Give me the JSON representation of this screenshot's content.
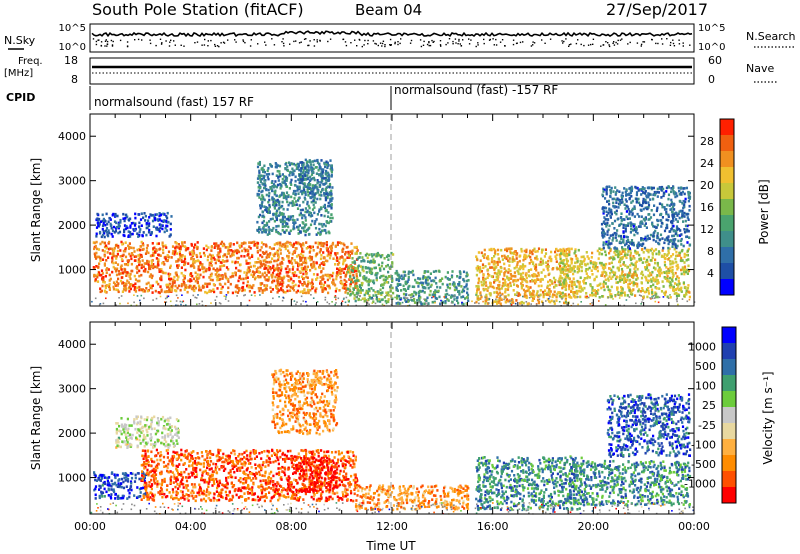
{
  "header": {
    "station": "South Pole Station (fitACF)",
    "beam": "Beam 04",
    "date": "27/Sep/2017"
  },
  "top_strip": {
    "nsky_label": "N.Sky",
    "nsearch_label": "N.Search",
    "nsky_ticks": [
      "10^5",
      "10^0"
    ],
    "nsearch_ticks": [
      "10^5",
      "10^0"
    ],
    "freq_label": "Freq.",
    "freq_unit": "[MHz]",
    "freq_ticks": [
      "18",
      "8"
    ],
    "nave_label": "Nave",
    "nave_ticks": [
      "60",
      "0"
    ],
    "cpid_label": "CPID",
    "cpid_left": "normalsound (fast) 157 RF",
    "cpid_right": "normalsound (fast) -157 RF"
  },
  "colors": {
    "power_scale": [
      "#0000ff",
      "#1e4fa6",
      "#2f6fa8",
      "#3f8f8a",
      "#4aa36e",
      "#7ab84a",
      "#c8c83a",
      "#f0c030",
      "#f09020",
      "#f06010",
      "#ff2000"
    ],
    "velocity_scale": [
      "#ff0000",
      "#ff5000",
      "#ff8c00",
      "#ffb040",
      "#e8d8a0",
      "#c8c8c8",
      "#6ccc3c",
      "#3f9f6f",
      "#2f6fa8",
      "#2040b0",
      "#0000ff"
    ]
  },
  "chart_data": [
    {
      "type": "heatmap",
      "panel": "power",
      "ylabel": "Slant Range [km]",
      "ylim": [
        180,
        4500
      ],
      "yticks": [
        "1000",
        "2000",
        "3000",
        "4000"
      ],
      "xlim": [
        0,
        24
      ],
      "xticks": [
        "00:00",
        "04:00",
        "08:00",
        "12:00",
        "16:00",
        "20:00",
        "00:00"
      ],
      "colorbar_label": "Power [dB]",
      "colorbar_ticks": [
        "4",
        "8",
        "12",
        "16",
        "20",
        "24",
        "28"
      ],
      "colorbar_range": [
        0,
        30
      ],
      "blobs": [
        {
          "t0": 0.1,
          "t1": 10.6,
          "r0": 500,
          "r1": 1650,
          "level": 0.82
        },
        {
          "t0": 0.2,
          "t1": 3.2,
          "r0": 1750,
          "r1": 2300,
          "level": 0.12
        },
        {
          "t0": 6.6,
          "t1": 9.6,
          "r0": 1800,
          "r1": 3450,
          "level": 0.3
        },
        {
          "t0": 8.2,
          "t1": 9.6,
          "r0": 2700,
          "r1": 3500,
          "level": 0.25
        },
        {
          "t0": 10.2,
          "t1": 12.0,
          "r0": 300,
          "r1": 1400,
          "level": 0.45
        },
        {
          "t0": 12.1,
          "t1": 15.0,
          "r0": 250,
          "r1": 1000,
          "level": 0.35
        },
        {
          "t0": 15.3,
          "t1": 19.2,
          "r0": 250,
          "r1": 1500,
          "level": 0.7
        },
        {
          "t0": 18.6,
          "t1": 23.8,
          "r0": 400,
          "r1": 1500,
          "level": 0.62
        },
        {
          "t0": 20.3,
          "t1": 23.8,
          "r0": 1500,
          "r1": 2900,
          "level": 0.22
        }
      ]
    },
    {
      "type": "heatmap",
      "panel": "velocity",
      "ylabel": "Slant Range [km]",
      "ylim": [
        180,
        4500
      ],
      "yticks": [
        "1000",
        "2000",
        "3000",
        "4000"
      ],
      "xlim": [
        0,
        24
      ],
      "xticks": [
        "00:00",
        "04:00",
        "08:00",
        "12:00",
        "16:00",
        "20:00",
        "00:00"
      ],
      "xlabel": "Time UT",
      "colorbar_label": "Velocity [m s⁻¹]",
      "colorbar_ticks": [
        "1000",
        "500",
        "100",
        "25",
        "-25",
        "-100",
        "-500",
        "-1000"
      ],
      "colorbar_range": [
        -1000,
        1000
      ],
      "blobs": [
        {
          "t0": 0.1,
          "t1": 2.2,
          "r0": 550,
          "r1": 1150,
          "level": 0.85
        },
        {
          "t0": 2.0,
          "t1": 10.6,
          "r0": 500,
          "r1": 1650,
          "level": 0.15
        },
        {
          "t0": 7.8,
          "t1": 9.8,
          "r0": 700,
          "r1": 1500,
          "level": 0.04
        },
        {
          "t0": 1.0,
          "t1": 3.5,
          "r0": 1700,
          "r1": 2400,
          "level": 0.5
        },
        {
          "t0": 7.2,
          "t1": 9.8,
          "r0": 2000,
          "r1": 3450,
          "level": 0.25
        },
        {
          "t0": 10.5,
          "t1": 15.0,
          "r0": 300,
          "r1": 850,
          "level": 0.25
        },
        {
          "t0": 15.3,
          "t1": 19.5,
          "r0": 300,
          "r1": 1500,
          "level": 0.72
        },
        {
          "t0": 19.0,
          "t1": 23.8,
          "r0": 400,
          "r1": 1400,
          "level": 0.72
        },
        {
          "t0": 20.5,
          "t1": 23.8,
          "r0": 1500,
          "r1": 2900,
          "level": 0.82
        }
      ]
    }
  ]
}
